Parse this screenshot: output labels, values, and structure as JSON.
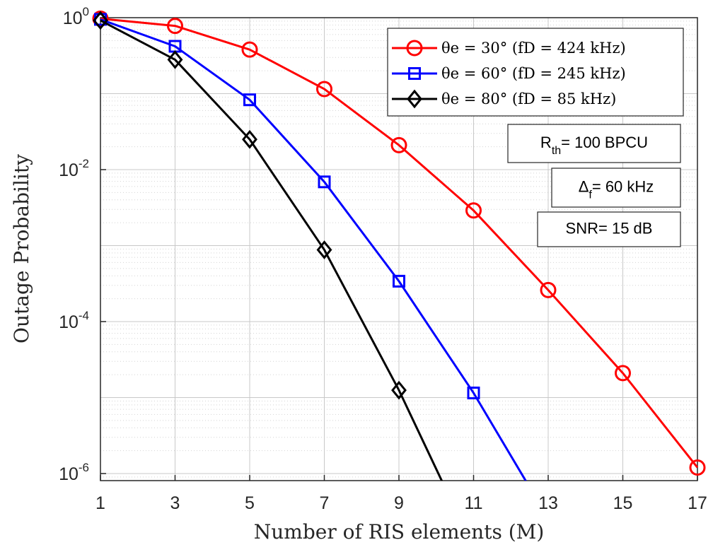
{
  "chart_data": {
    "type": "line",
    "xlabel": "Number of RIS elements (M)",
    "ylabel": "Outage Probability",
    "x_ticks": [
      1,
      3,
      5,
      7,
      9,
      11,
      13,
      15,
      17
    ],
    "y_ticks": [
      {
        "base": "10",
        "exp": "0",
        "value": 1
      },
      {
        "base": "10",
        "exp": "-2",
        "value": 0.01
      },
      {
        "base": "10",
        "exp": "-4",
        "value": 0.0001
      },
      {
        "base": "10",
        "exp": "-6",
        "value": 1e-06
      }
    ],
    "xlim": [
      1,
      17
    ],
    "ylim": [
      8e-07,
      1
    ],
    "yscale": "log",
    "grid": true,
    "legend_position": "top-right",
    "series": [
      {
        "name": "θe = 30° (fD = 424 kHz)",
        "color": "#ff0000",
        "marker": "circle",
        "x": [
          1,
          3,
          5,
          7,
          9,
          11,
          13,
          15,
          17
        ],
        "y": [
          0.97,
          0.78,
          0.38,
          0.115,
          0.021,
          0.0029,
          0.00026,
          2.1e-05,
          1.2e-06
        ]
      },
      {
        "name": "θe = 60° (fD = 245 kHz)",
        "color": "#0000ff",
        "marker": "square",
        "x": [
          1,
          3,
          5,
          7,
          9,
          11,
          12.4
        ],
        "y": [
          0.95,
          0.42,
          0.083,
          0.0069,
          0.00034,
          1.15e-05,
          8e-07
        ],
        "marker_count": 6
      },
      {
        "name": "θe = 80° (fD = 85 kHz)",
        "color": "#000000",
        "marker": "diamond",
        "x": [
          1,
          3,
          5,
          7,
          9,
          10.15
        ],
        "y": [
          0.92,
          0.28,
          0.025,
          0.00088,
          1.25e-05,
          8e-07
        ],
        "marker_count": 5
      }
    ],
    "annotations": [
      {
        "main": "R",
        "sub": "th",
        "rest": "= 100 BPCU"
      },
      {
        "main": "Δ",
        "sub": "f",
        "rest": "= 60 kHz"
      },
      {
        "main": "SNR= 15 dB",
        "sub": "",
        "rest": ""
      }
    ]
  }
}
